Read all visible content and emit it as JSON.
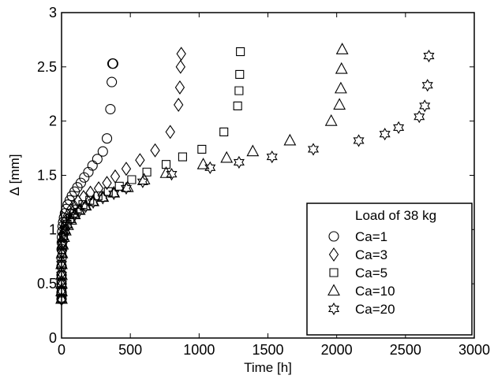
{
  "chart_data": {
    "type": "scatter",
    "xlabel": "Time [h]",
    "ylabel": "Δ [mm]",
    "xlim": [
      0,
      3000
    ],
    "ylim": [
      0,
      3
    ],
    "xticks": [
      0,
      500,
      1000,
      1500,
      2000,
      2500,
      3000
    ],
    "yticks": [
      0,
      0.5,
      1,
      1.5,
      2,
      2.5,
      3
    ],
    "grid": false,
    "legend_title": "Load of 38 kg",
    "legend_position": "bottom-right",
    "series": [
      {
        "name": "Ca=1",
        "marker": "circle",
        "x": [
          0,
          0,
          0,
          0,
          0,
          0,
          1,
          2,
          3,
          5,
          8,
          12,
          18,
          25,
          35,
          45,
          60,
          75,
          95,
          115,
          140,
          165,
          195,
          225,
          260,
          300,
          330,
          355,
          365,
          370,
          375
        ],
        "y": [
          0.36,
          0.42,
          0.5,
          0.58,
          0.66,
          0.74,
          0.82,
          0.88,
          0.93,
          0.98,
          1.03,
          1.07,
          1.11,
          1.15,
          1.19,
          1.23,
          1.27,
          1.31,
          1.35,
          1.39,
          1.43,
          1.48,
          1.53,
          1.59,
          1.65,
          1.72,
          1.84,
          2.11,
          2.36,
          2.53,
          2.53
        ]
      },
      {
        "name": "Ca=3",
        "marker": "diamond",
        "x": [
          0,
          0,
          0,
          0,
          0,
          2,
          5,
          10,
          18,
          30,
          45,
          65,
          90,
          120,
          160,
          210,
          270,
          330,
          390,
          470,
          570,
          680,
          790,
          850,
          860,
          865,
          870
        ],
        "y": [
          0.36,
          0.44,
          0.52,
          0.6,
          0.7,
          0.8,
          0.88,
          0.96,
          1.02,
          1.08,
          1.13,
          1.18,
          1.22,
          1.26,
          1.3,
          1.34,
          1.38,
          1.43,
          1.49,
          1.56,
          1.64,
          1.73,
          1.9,
          2.15,
          2.31,
          2.5,
          2.62
        ]
      },
      {
        "name": "Ca=5",
        "marker": "square",
        "x": [
          0,
          0,
          0,
          0,
          0,
          3,
          7,
          14,
          25,
          40,
          60,
          85,
          115,
          155,
          205,
          265,
          340,
          420,
          510,
          620,
          760,
          880,
          1020,
          1180,
          1280,
          1290,
          1295,
          1300
        ],
        "y": [
          0.36,
          0.43,
          0.5,
          0.58,
          0.68,
          0.78,
          0.86,
          0.94,
          1.0,
          1.05,
          1.1,
          1.15,
          1.19,
          1.23,
          1.27,
          1.31,
          1.35,
          1.4,
          1.46,
          1.53,
          1.6,
          1.67,
          1.74,
          1.9,
          2.14,
          2.28,
          2.43,
          2.64
        ]
      },
      {
        "name": "Ca=10",
        "marker": "triangle",
        "x": [
          0,
          0,
          0,
          0,
          0,
          3,
          8,
          16,
          28,
          45,
          68,
          95,
          130,
          175,
          230,
          300,
          380,
          480,
          600,
          760,
          1030,
          1200,
          1390,
          1660,
          1960,
          2020,
          2030,
          2035,
          2040
        ],
        "y": [
          0.36,
          0.43,
          0.5,
          0.58,
          0.68,
          0.78,
          0.86,
          0.93,
          0.99,
          1.04,
          1.09,
          1.14,
          1.18,
          1.22,
          1.26,
          1.3,
          1.34,
          1.39,
          1.46,
          1.52,
          1.6,
          1.66,
          1.72,
          1.82,
          2.0,
          2.15,
          2.3,
          2.48,
          2.66
        ]
      },
      {
        "name": "Ca=20",
        "marker": "hexagram",
        "x": [
          0,
          0,
          0,
          0,
          0,
          3,
          8,
          16,
          28,
          45,
          68,
          95,
          130,
          175,
          230,
          300,
          380,
          470,
          590,
          800,
          1080,
          1290,
          1530,
          1830,
          2160,
          2350,
          2450,
          2600,
          2640,
          2660,
          2670
        ],
        "y": [
          0.36,
          0.43,
          0.5,
          0.58,
          0.68,
          0.78,
          0.86,
          0.93,
          0.99,
          1.04,
          1.09,
          1.13,
          1.17,
          1.21,
          1.25,
          1.29,
          1.33,
          1.38,
          1.44,
          1.51,
          1.57,
          1.62,
          1.67,
          1.74,
          1.82,
          1.88,
          1.94,
          2.04,
          2.14,
          2.33,
          2.6
        ]
      }
    ]
  }
}
